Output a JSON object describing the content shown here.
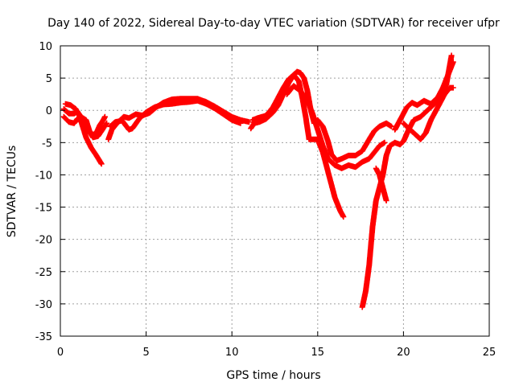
{
  "chart_data": {
    "type": "scatter",
    "title": "Day 140 of 2022, Sidereal Day-to-day VTEC variation (SDTVAR) for receiver ufpr",
    "xlabel": "GPS time / hours",
    "ylabel": "SDTVAR / TECUs",
    "xlim": [
      0,
      25
    ],
    "ylim": [
      -35,
      10
    ],
    "xticks": [
      0,
      5,
      10,
      15,
      20,
      25
    ],
    "yticks": [
      -35,
      -30,
      -25,
      -20,
      -15,
      -10,
      -5,
      0,
      5,
      10
    ],
    "grid": true,
    "marker": "+",
    "color": "#ff0000",
    "series": [
      {
        "points": [
          [
            0.2,
            0.2
          ],
          [
            0.5,
            -0.5
          ],
          [
            0.8,
            -0.5
          ],
          [
            1.0,
            -0.2
          ],
          [
            1.2,
            -1.0
          ],
          [
            1.5,
            -1.5
          ],
          [
            1.7,
            -3.2
          ],
          [
            1.9,
            -3.8
          ],
          [
            2.1,
            -3.5
          ],
          [
            2.3,
            -2.3
          ],
          [
            2.5,
            -1.5
          ],
          [
            2.6,
            -1.0
          ]
        ]
      },
      {
        "points": [
          [
            0.3,
            1.0
          ],
          [
            0.6,
            0.8
          ],
          [
            0.9,
            0.2
          ],
          [
            1.1,
            -0.8
          ],
          [
            1.3,
            -2.5
          ],
          [
            1.5,
            -4.2
          ],
          [
            1.8,
            -5.8
          ],
          [
            2.1,
            -7.0
          ],
          [
            2.4,
            -8.3
          ]
        ]
      },
      {
        "points": [
          [
            0.2,
            -1.0
          ],
          [
            0.5,
            -1.8
          ],
          [
            0.8,
            -2.0
          ],
          [
            1.0,
            -1.3
          ],
          [
            1.3,
            -1.8
          ],
          [
            1.6,
            -3.0
          ],
          [
            1.9,
            -4.2
          ],
          [
            2.2,
            -4.0
          ],
          [
            2.5,
            -2.8
          ],
          [
            2.7,
            -2.0
          ]
        ]
      },
      {
        "points": [
          [
            2.8,
            -4.5
          ],
          [
            3.0,
            -3.0
          ],
          [
            3.3,
            -2.0
          ],
          [
            3.7,
            -1.0
          ],
          [
            4.0,
            -1.2
          ],
          [
            4.4,
            -0.6
          ],
          [
            4.8,
            -0.8
          ],
          [
            5.2,
            -0.4
          ],
          [
            5.6,
            0.5
          ],
          [
            6.0,
            1.2
          ],
          [
            6.5,
            1.7
          ],
          [
            7.0,
            1.8
          ],
          [
            7.5,
            1.8
          ],
          [
            8.0,
            1.8
          ],
          [
            8.5,
            1.3
          ],
          [
            9.0,
            0.6
          ],
          [
            9.5,
            -0.2
          ],
          [
            10.0,
            -1.0
          ],
          [
            10.5,
            -1.5
          ],
          [
            11.0,
            -1.8
          ]
        ]
      },
      {
        "points": [
          [
            2.9,
            -2.5
          ],
          [
            3.2,
            -1.8
          ],
          [
            3.6,
            -1.6
          ],
          [
            4.0,
            -3.0
          ],
          [
            4.2,
            -2.8
          ],
          [
            4.6,
            -1.3
          ],
          [
            5.0,
            -0.3
          ],
          [
            5.5,
            0.5
          ],
          [
            6.0,
            0.9
          ],
          [
            6.5,
            1.0
          ],
          [
            7.0,
            1.2
          ],
          [
            7.5,
            1.3
          ],
          [
            8.0,
            1.5
          ],
          [
            8.5,
            1.0
          ],
          [
            9.0,
            0.3
          ],
          [
            9.5,
            -0.6
          ],
          [
            10.0,
            -1.5
          ],
          [
            10.5,
            -2.0
          ]
        ]
      },
      {
        "points": [
          [
            11.1,
            -2.8
          ],
          [
            11.3,
            -2.0
          ],
          [
            11.6,
            -1.8
          ],
          [
            12.0,
            -1.3
          ],
          [
            12.4,
            -0.3
          ],
          [
            12.7,
            0.8
          ],
          [
            13.0,
            2.5
          ],
          [
            13.3,
            4.2
          ],
          [
            13.6,
            5.5
          ],
          [
            13.8,
            6.0
          ],
          [
            14.0,
            5.8
          ],
          [
            14.2,
            5.0
          ],
          [
            14.4,
            3.0
          ],
          [
            14.6,
            0.0
          ],
          [
            14.8,
            -2.0
          ],
          [
            15.0,
            -1.5
          ],
          [
            15.3,
            -2.5
          ],
          [
            15.6,
            -4.8
          ],
          [
            15.8,
            -6.8
          ],
          [
            16.1,
            -7.8
          ],
          [
            16.4,
            -7.5
          ],
          [
            16.8,
            -7.0
          ],
          [
            17.2,
            -7.0
          ],
          [
            17.6,
            -6.3
          ],
          [
            18.0,
            -4.5
          ],
          [
            18.3,
            -3.2
          ],
          [
            18.6,
            -2.5
          ],
          [
            19.0,
            -2.0
          ],
          [
            19.3,
            -2.5
          ]
        ]
      },
      {
        "points": [
          [
            11.2,
            -1.5
          ],
          [
            11.5,
            -1.2
          ],
          [
            12.0,
            -0.8
          ],
          [
            12.4,
            0.5
          ],
          [
            12.7,
            2.0
          ],
          [
            13.0,
            3.5
          ],
          [
            13.3,
            4.8
          ],
          [
            13.6,
            5.5
          ],
          [
            13.9,
            4.5
          ],
          [
            14.1,
            2.0
          ],
          [
            14.3,
            -1.0
          ],
          [
            14.5,
            -4.5
          ],
          [
            15.0,
            -4.5
          ],
          [
            15.3,
            -6.5
          ],
          [
            15.6,
            -9.5
          ],
          [
            15.8,
            -11.5
          ],
          [
            16.0,
            -13.5
          ],
          [
            16.3,
            -15.5
          ],
          [
            16.5,
            -16.5
          ]
        ]
      },
      {
        "points": [
          [
            13.2,
            2.5
          ],
          [
            13.6,
            3.8
          ],
          [
            14.0,
            3.0
          ],
          [
            14.4,
            1.5
          ],
          [
            14.7,
            -0.5
          ],
          [
            15.0,
            -3.0
          ],
          [
            15.3,
            -5.5
          ],
          [
            15.6,
            -7.5
          ],
          [
            16.0,
            -8.5
          ],
          [
            16.4,
            -9.0
          ],
          [
            16.8,
            -8.5
          ],
          [
            17.2,
            -8.8
          ],
          [
            17.6,
            -8.0
          ],
          [
            18.0,
            -7.5
          ],
          [
            18.3,
            -6.5
          ],
          [
            18.6,
            -5.5
          ],
          [
            18.9,
            -5.0
          ]
        ]
      },
      {
        "points": [
          [
            17.6,
            -30.5
          ],
          [
            17.8,
            -28.0
          ],
          [
            18.0,
            -24.0
          ],
          [
            18.2,
            -18.0
          ],
          [
            18.4,
            -14.0
          ],
          [
            18.6,
            -12.0
          ],
          [
            18.8,
            -10.0
          ],
          [
            19.0,
            -7.0
          ],
          [
            19.2,
            -5.5
          ],
          [
            19.5,
            -5.0
          ],
          [
            19.8,
            -5.3
          ],
          [
            20.0,
            -4.8
          ],
          [
            20.3,
            -3.0
          ],
          [
            20.6,
            -1.5
          ],
          [
            21.0,
            -1.0
          ],
          [
            21.4,
            0.0
          ],
          [
            21.8,
            1.0
          ],
          [
            22.2,
            2.0
          ],
          [
            22.5,
            4.0
          ],
          [
            22.8,
            8.5
          ]
        ]
      },
      {
        "points": [
          [
            18.4,
            -9.0
          ],
          [
            18.6,
            -10.0
          ],
          [
            18.8,
            -12.0
          ],
          [
            19.0,
            -14.0
          ]
        ]
      },
      {
        "points": [
          [
            19.5,
            -3.0
          ],
          [
            19.8,
            -1.5
          ],
          [
            20.0,
            -0.5
          ],
          [
            20.2,
            0.5
          ],
          [
            20.5,
            1.2
          ],
          [
            20.8,
            0.8
          ],
          [
            21.2,
            1.5
          ],
          [
            21.6,
            1.0
          ],
          [
            22.0,
            2.0
          ],
          [
            22.3,
            3.5
          ],
          [
            22.6,
            5.5
          ],
          [
            22.9,
            7.5
          ]
        ]
      },
      {
        "points": [
          [
            20.0,
            -2.0
          ],
          [
            20.3,
            -2.8
          ],
          [
            20.6,
            -3.5
          ],
          [
            21.0,
            -4.5
          ],
          [
            21.3,
            -3.5
          ],
          [
            21.6,
            -1.5
          ],
          [
            22.0,
            0.5
          ],
          [
            22.4,
            2.5
          ],
          [
            22.7,
            3.5
          ],
          [
            22.9,
            3.5
          ]
        ]
      }
    ]
  }
}
